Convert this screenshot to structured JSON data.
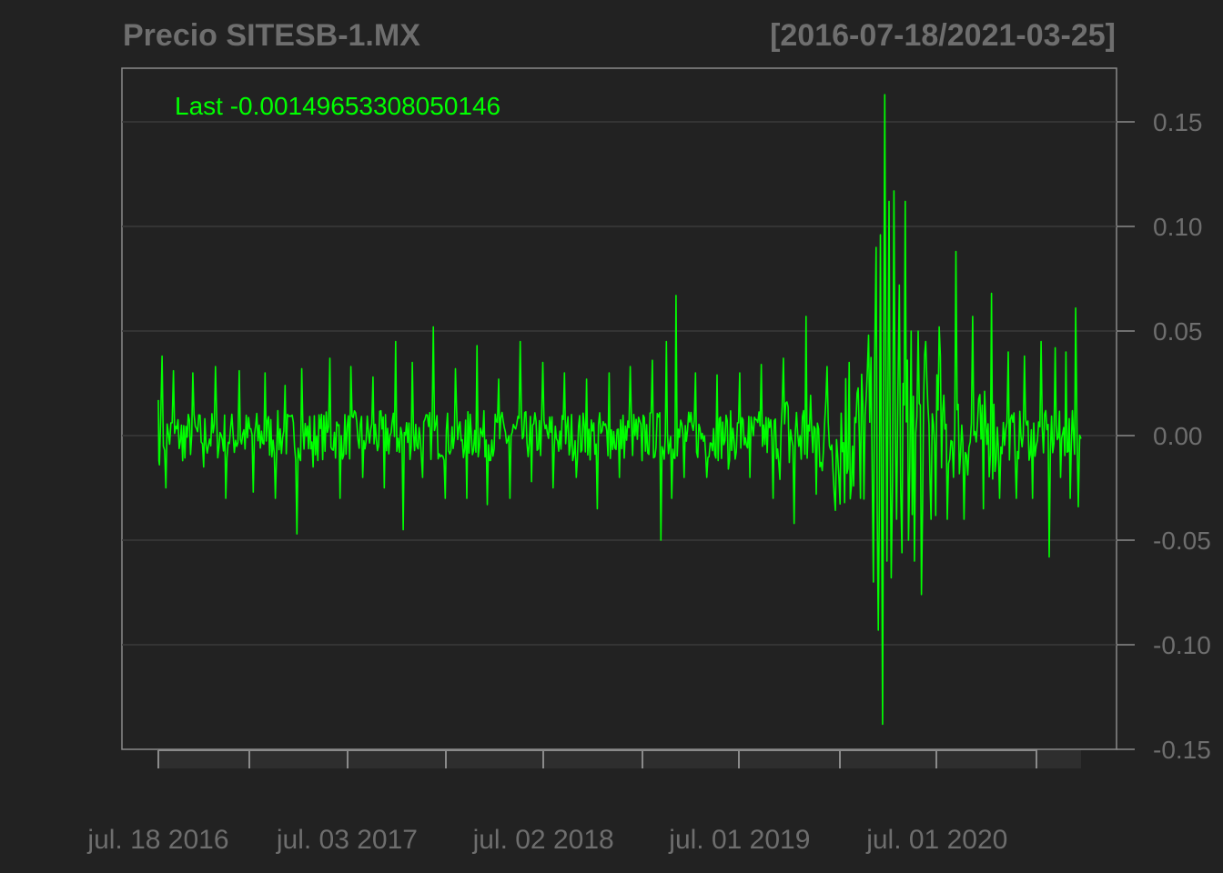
{
  "chart_data": {
    "type": "line",
    "title": "Precio SITESB-1.MX",
    "date_range": "[2016-07-18/2021-03-25]",
    "legend": "Last -0.00149653308050146",
    "legend_position": "top-left",
    "x_start": "2016-07-18",
    "x_end": "2021-03-25",
    "ylim": [
      -0.15,
      0.16
    ],
    "y_ticks": [
      0.15,
      0.1,
      0.05,
      0.0,
      -0.05,
      -0.1,
      -0.15
    ],
    "y_tick_labels": [
      "0.15",
      "0.10",
      "0.05",
      "0.00",
      "-0.05",
      "-0.10",
      "-0.15"
    ],
    "x_tick_labels": [
      "jul. 18 2016",
      "jul. 03 2017",
      "jul. 02 2018",
      "jul. 01 2019",
      "jul. 01 2020"
    ],
    "x_tick_dates": [
      "2016-07-18",
      "2017-07-03",
      "2018-07-02",
      "2019-07-01",
      "2020-07-01"
    ],
    "grid": true,
    "series": [
      {
        "color": "#00ff00",
        "points": [
          [
            "2016-07-18",
            0.017
          ],
          [
            "2016-07-20",
            -0.014
          ],
          [
            "2016-07-25",
            0.038
          ],
          [
            "2016-08-01",
            -0.025
          ],
          [
            "2016-08-15",
            0.031
          ],
          [
            "2016-09-01",
            -0.012
          ],
          [
            "2016-09-20",
            0.03
          ],
          [
            "2016-10-10",
            -0.015
          ],
          [
            "2016-11-01",
            0.033
          ],
          [
            "2016-11-20",
            -0.03
          ],
          [
            "2016-12-15",
            0.031
          ],
          [
            "2017-01-10",
            -0.027
          ],
          [
            "2017-02-01",
            0.03
          ],
          [
            "2017-02-20",
            -0.03
          ],
          [
            "2017-03-10",
            0.024
          ],
          [
            "2017-04-01",
            -0.047
          ],
          [
            "2017-04-10",
            0.032
          ],
          [
            "2017-05-01",
            -0.015
          ],
          [
            "2017-06-01",
            0.037
          ],
          [
            "2017-06-20",
            -0.03
          ],
          [
            "2017-07-10",
            0.033
          ],
          [
            "2017-08-01",
            -0.02
          ],
          [
            "2017-08-20",
            0.028
          ],
          [
            "2017-09-10",
            -0.025
          ],
          [
            "2017-10-01",
            0.045
          ],
          [
            "2017-10-15",
            -0.045
          ],
          [
            "2017-11-01",
            0.035
          ],
          [
            "2017-11-20",
            -0.02
          ],
          [
            "2017-12-10",
            0.052
          ],
          [
            "2018-01-01",
            -0.03
          ],
          [
            "2018-01-20",
            0.032
          ],
          [
            "2018-02-10",
            -0.03
          ],
          [
            "2018-03-01",
            0.043
          ],
          [
            "2018-03-20",
            -0.033
          ],
          [
            "2018-04-10",
            0.027
          ],
          [
            "2018-05-01",
            -0.03
          ],
          [
            "2018-05-20",
            0.045
          ],
          [
            "2018-06-10",
            -0.022
          ],
          [
            "2018-07-01",
            0.035
          ],
          [
            "2018-07-20",
            -0.025
          ],
          [
            "2018-08-10",
            0.03
          ],
          [
            "2018-09-01",
            -0.02
          ],
          [
            "2018-09-20",
            0.027
          ],
          [
            "2018-10-10",
            -0.035
          ],
          [
            "2018-11-01",
            0.03
          ],
          [
            "2018-11-20",
            -0.02
          ],
          [
            "2018-12-10",
            0.033
          ],
          [
            "2019-01-01",
            -0.012
          ],
          [
            "2019-01-20",
            0.036
          ],
          [
            "2019-02-05",
            -0.05
          ],
          [
            "2019-02-15",
            0.045
          ],
          [
            "2019-02-25",
            -0.03
          ],
          [
            "2019-03-05",
            0.067
          ],
          [
            "2019-03-20",
            -0.02
          ],
          [
            "2019-04-10",
            0.03
          ],
          [
            "2019-05-01",
            -0.02
          ],
          [
            "2019-05-20",
            0.029
          ],
          [
            "2019-06-10",
            -0.016
          ],
          [
            "2019-07-01",
            0.03
          ],
          [
            "2019-07-20",
            -0.02
          ],
          [
            "2019-08-10",
            0.034
          ],
          [
            "2019-09-01",
            -0.03
          ],
          [
            "2019-09-20",
            0.037
          ],
          [
            "2019-10-10",
            -0.042
          ],
          [
            "2019-11-01",
            0.057
          ],
          [
            "2019-11-20",
            -0.028
          ],
          [
            "2019-12-10",
            0.033
          ],
          [
            "2020-01-01",
            -0.02
          ],
          [
            "2020-01-20",
            0.035
          ],
          [
            "2020-02-10",
            -0.03
          ],
          [
            "2020-02-25",
            0.048
          ],
          [
            "2020-03-05",
            -0.07
          ],
          [
            "2020-03-10",
            0.09
          ],
          [
            "2020-03-14",
            -0.093
          ],
          [
            "2020-03-18",
            0.096
          ],
          [
            "2020-03-22",
            -0.138
          ],
          [
            "2020-03-26",
            0.163
          ],
          [
            "2020-03-30",
            -0.06
          ],
          [
            "2020-04-03",
            0.112
          ],
          [
            "2020-04-07",
            -0.068
          ],
          [
            "2020-04-12",
            0.117
          ],
          [
            "2020-04-17",
            -0.04
          ],
          [
            "2020-04-22",
            0.072
          ],
          [
            "2020-04-27",
            -0.056
          ],
          [
            "2020-05-03",
            0.112
          ],
          [
            "2020-05-09",
            -0.05
          ],
          [
            "2020-05-14",
            0.05
          ],
          [
            "2020-05-20",
            -0.06
          ],
          [
            "2020-05-27",
            0.05
          ],
          [
            "2020-06-02",
            -0.076
          ],
          [
            "2020-06-10",
            0.045
          ],
          [
            "2020-06-20",
            -0.04
          ],
          [
            "2020-07-05",
            0.052
          ],
          [
            "2020-07-20",
            -0.04
          ],
          [
            "2020-08-05",
            0.088
          ],
          [
            "2020-08-20",
            -0.04
          ],
          [
            "2020-09-05",
            0.057
          ],
          [
            "2020-09-25",
            -0.035
          ],
          [
            "2020-10-10",
            0.068
          ],
          [
            "2020-10-25",
            -0.03
          ],
          [
            "2020-11-10",
            0.04
          ],
          [
            "2020-11-25",
            -0.03
          ],
          [
            "2020-12-10",
            0.038
          ],
          [
            "2020-12-25",
            -0.03
          ],
          [
            "2021-01-10",
            0.045
          ],
          [
            "2021-01-25",
            -0.058
          ],
          [
            "2021-02-05",
            0.042
          ],
          [
            "2021-02-15",
            -0.02
          ],
          [
            "2021-02-25",
            0.04
          ],
          [
            "2021-03-05",
            -0.03
          ],
          [
            "2021-03-15",
            0.061
          ],
          [
            "2021-03-20",
            -0.034
          ],
          [
            "2021-03-25",
            -0.0015
          ]
        ]
      }
    ]
  }
}
